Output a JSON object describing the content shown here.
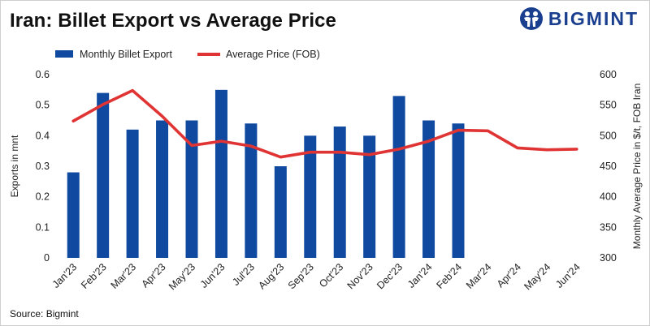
{
  "header": {
    "title": "Iran: Billet Export vs Average Price",
    "brand": "BIGMINT"
  },
  "footer": {
    "source": "Source: Bigmint"
  },
  "colors": {
    "bar": "#0f4aa0",
    "line": "#e03434",
    "brand": "#1a3f8f"
  },
  "chart_data": {
    "type": "bar",
    "title": "Iran: Billet Export vs Average Price",
    "categories": [
      "Jan'23",
      "Feb'23",
      "Mar'23",
      "Apr'23",
      "May'23",
      "Jun'23",
      "Jul'23",
      "Aug'23",
      "Sep'23",
      "Oct'23",
      "Nov'23",
      "Dec'23",
      "Jan'24",
      "Feb'24",
      "Mar'24",
      "Apr'24",
      "May'24",
      "Jun'24"
    ],
    "series": [
      {
        "name": "Monthly Billet Export",
        "type": "bar",
        "axis": "left",
        "values": [
          0.28,
          0.54,
          0.42,
          0.45,
          0.45,
          0.55,
          0.44,
          0.3,
          0.4,
          0.43,
          0.4,
          0.53,
          0.45,
          0.44,
          null,
          null,
          null,
          null
        ]
      },
      {
        "name": "Average Price (FOB)",
        "type": "line",
        "axis": "right",
        "values": [
          524,
          551,
          574,
          532,
          484,
          491,
          483,
          465,
          473,
          473,
          469,
          478,
          491,
          509,
          508,
          480,
          477,
          478
        ]
      }
    ],
    "ylabel": "Exports in mnt",
    "y2label": "Monthly Average Price in $/t, FOB Iran",
    "ylim": [
      0,
      0.6
    ],
    "y2lim": [
      300,
      600
    ],
    "yticks": [
      "0",
      "0.1",
      "0.2",
      "0.3",
      "0.4",
      "0.5",
      "0.6"
    ],
    "y2ticks": [
      "300",
      "350",
      "400",
      "450",
      "500",
      "550",
      "600"
    ],
    "legend": "top-left",
    "grid": false
  }
}
